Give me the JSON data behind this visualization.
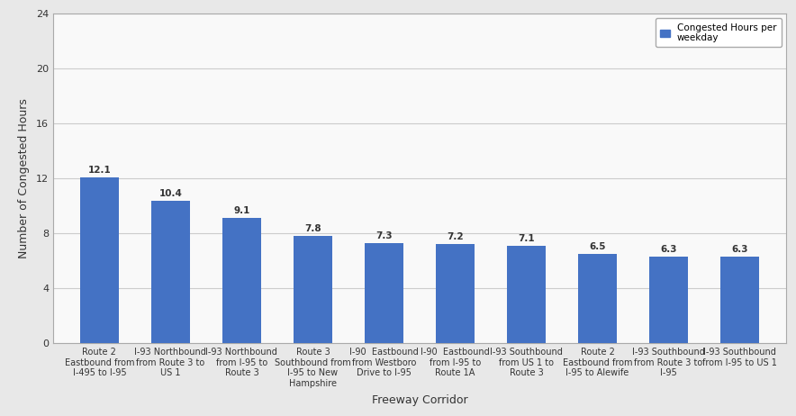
{
  "categories": [
    "Route 2\nEastbound from\nI-495 to I-95",
    "I-93 Northbound\nfrom Route 3 to\nUS 1",
    "I-93 Northbound\nfrom I-95 to\nRoute 3",
    "Route 3\nSouthbound from\nI-95 to New\nHampshire",
    "I-90  Eastbound\nfrom Westboro\nDrive to I-95",
    "I-90  Eastbound\nfrom I-95 to\nRoute 1A",
    "I-93 Southbound\nfrom US 1 to\nRoute 3",
    "Route 2\nEastbound from\nI-95 to Alewife",
    "I-93 Southbound\nfrom Route 3 to\nI-95",
    "I-93 Southbound\nfrom I-95 to US 1"
  ],
  "values": [
    12.1,
    10.4,
    9.1,
    7.8,
    7.3,
    7.2,
    7.1,
    6.5,
    6.3,
    6.3
  ],
  "bar_color": "#4472C4",
  "ylabel": "Number of Congested Hours",
  "xlabel": "Freeway Corridor",
  "ylim": [
    0,
    24
  ],
  "yticks": [
    0,
    4,
    8,
    12,
    16,
    20,
    24
  ],
  "legend_label": "Congested Hours per\nweekday",
  "bar_width": 0.55,
  "value_label_fontsize": 7.5,
  "axis_label_fontsize": 9,
  "tick_fontsize": 7,
  "background_color": "#ffffff",
  "plot_bg_color": "#f9f9f9",
  "grid_color": "#cccccc",
  "border_color": "#aaaaaa",
  "text_color": "#333333"
}
